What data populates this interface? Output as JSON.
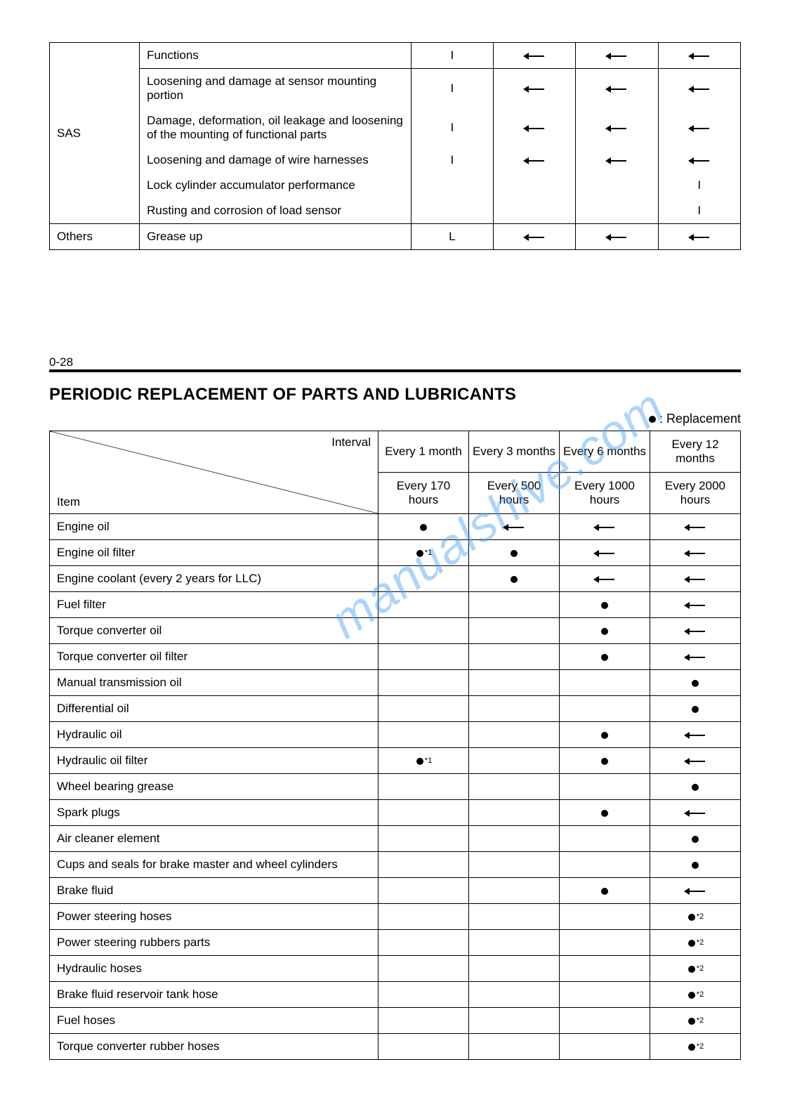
{
  "watermark_text": "manualshive.com",
  "top_table": {
    "col0_label1": "SAS",
    "col0_label2": "Others",
    "rows": [
      {
        "desc": "Functions",
        "c2": "I",
        "c3": "arrow",
        "c4": "arrow",
        "c5": "arrow"
      },
      {
        "desc": "Loosening and damage at sensor mounting portion",
        "c2": "I",
        "c3": "arrow",
        "c4": "arrow",
        "c5": "arrow"
      },
      {
        "desc": "Damage, deformation, oil leakage and loosening of the mounting of functional parts",
        "c2": "I",
        "c3": "arrow",
        "c4": "arrow",
        "c5": "arrow"
      },
      {
        "desc": "Loosening and damage of wire harnesses",
        "c2": "I",
        "c3": "arrow",
        "c4": "arrow",
        "c5": "arrow"
      },
      {
        "desc": "Lock cylinder accumulator performance",
        "c2": "",
        "c3": "",
        "c4": "",
        "c5": "I"
      },
      {
        "desc": "Rusting and corrosion of load sensor",
        "c2": "",
        "c3": "",
        "c4": "",
        "c5": "I"
      }
    ],
    "others_row": {
      "desc": "Grease up",
      "c2": "L",
      "c3": "arrow",
      "c4": "arrow",
      "c5": "arrow"
    }
  },
  "page_number": "0-28",
  "section_title": "PERIODIC REPLACEMENT OF PARTS AND LUBRICANTS",
  "legend_text": " : Replacement",
  "bottom_table": {
    "hdr_interval": "Interval",
    "hdr_item": "Item",
    "cols_top": [
      "Every 1 month",
      "Every 3 months",
      "Every 6 months",
      "Every 12 months"
    ],
    "cols_bot": [
      "Every 170 hours",
      "Every 500 hours",
      "Every 1000 hours",
      "Every 2000 hours"
    ],
    "rows": [
      {
        "item": "Engine oil",
        "v": [
          "dot",
          "arrow",
          "arrow",
          "arrow"
        ]
      },
      {
        "item": "Engine oil filter",
        "v": [
          "dot_n1",
          "dot",
          "arrow",
          "arrow"
        ]
      },
      {
        "item": "Engine coolant (every 2 years for LLC)",
        "v": [
          "",
          "dot",
          "arrow",
          "arrow"
        ]
      },
      {
        "item": "Fuel filter",
        "v": [
          "",
          "",
          "dot",
          "arrow"
        ]
      },
      {
        "item": "Torque converter oil",
        "v": [
          "",
          "",
          "dot",
          "arrow"
        ]
      },
      {
        "item": "Torque converter oil filter",
        "v": [
          "",
          "",
          "dot",
          "arrow"
        ]
      },
      {
        "item": "Manual transmission oil",
        "v": [
          "",
          "",
          "",
          "dot"
        ]
      },
      {
        "item": "Differential oil",
        "v": [
          "",
          "",
          "",
          "dot"
        ]
      },
      {
        "item": "Hydraulic oil",
        "v": [
          "",
          "",
          "dot",
          "arrow"
        ]
      },
      {
        "item": "Hydraulic oil filter",
        "v": [
          "dot_n1",
          "",
          "dot",
          "arrow"
        ]
      },
      {
        "item": "Wheel bearing grease",
        "v": [
          "",
          "",
          "",
          "dot"
        ]
      },
      {
        "item": "Spark plugs",
        "v": [
          "",
          "",
          "dot",
          "arrow"
        ]
      },
      {
        "item": "Air cleaner element",
        "v": [
          "",
          "",
          "",
          "dot"
        ]
      },
      {
        "item": "Cups and seals for brake master and wheel cylinders",
        "v": [
          "",
          "",
          "",
          "dot"
        ]
      },
      {
        "item": "Brake fluid",
        "v": [
          "",
          "",
          "dot",
          "arrow"
        ]
      },
      {
        "item": "Power steering hoses",
        "v": [
          "",
          "",
          "",
          "dot_n2"
        ]
      },
      {
        "item": "Power steering rubbers parts",
        "v": [
          "",
          "",
          "",
          "dot_n2"
        ]
      },
      {
        "item": "Hydraulic hoses",
        "v": [
          "",
          "",
          "",
          "dot_n2"
        ]
      },
      {
        "item": "Brake fluid reservoir tank hose",
        "v": [
          "",
          "",
          "",
          "dot_n2"
        ]
      },
      {
        "item": "Fuel hoses",
        "v": [
          "",
          "",
          "",
          "dot_n2"
        ]
      },
      {
        "item": "Torque converter rubber hoses",
        "v": [
          "",
          "",
          "",
          "dot_n2"
        ]
      }
    ]
  }
}
